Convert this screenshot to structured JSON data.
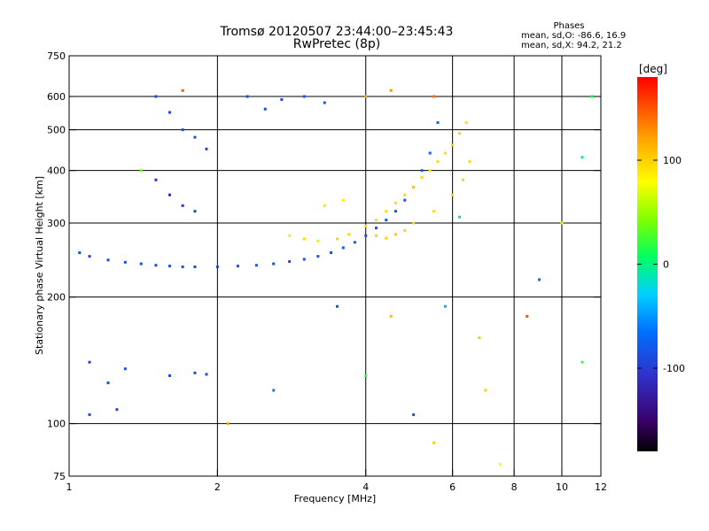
{
  "chart_data": {
    "type": "scatter",
    "title": "Tromsø 20120507 23:44:00–23:45:43",
    "subtitle": "RwPretec (8p)",
    "xlabel": "Frequency [MHz]",
    "ylabel": "Stationary phase Virtual Height [km]",
    "x_scale": "log",
    "y_scale": "log",
    "xlim": [
      1,
      12
    ],
    "ylim": [
      75,
      750
    ],
    "x_ticks": [
      1,
      2,
      4,
      6,
      8,
      10,
      12
    ],
    "y_ticks": [
      75,
      100,
      200,
      300,
      400,
      500,
      600,
      750
    ],
    "x_gridlines": [
      2,
      4,
      6,
      8,
      10
    ],
    "y_gridlines": [
      100,
      200,
      300,
      400,
      500,
      600
    ],
    "grid": true,
    "stats": {
      "heading": "Phases",
      "line_o": "mean, sd,O: -86.6, 16.9",
      "line_x": "mean, sd,X:  94.2, 21.2"
    },
    "colorbar": {
      "label": "[deg]",
      "range": [
        -180,
        180
      ],
      "ticks": [
        100,
        0,
        -100
      ],
      "colormap": "rainbow (black→purple→blue→cyan→green→yellow→orange→red)"
    },
    "o_trace_points": [
      [
        1.05,
        255,
        -90
      ],
      [
        1.1,
        250,
        -95
      ],
      [
        1.2,
        245,
        -92
      ],
      [
        1.3,
        242,
        -88
      ],
      [
        1.4,
        240,
        -90
      ],
      [
        1.5,
        238,
        -93
      ],
      [
        1.6,
        237,
        -85
      ],
      [
        1.7,
        236,
        -88
      ],
      [
        1.8,
        236,
        -90
      ],
      [
        2.0,
        236,
        -92
      ],
      [
        2.2,
        237,
        -87
      ],
      [
        2.4,
        238,
        -85
      ],
      [
        2.6,
        240,
        -90
      ],
      [
        2.8,
        243,
        -88
      ],
      [
        3.0,
        246,
        -86
      ],
      [
        3.2,
        250,
        -84
      ],
      [
        3.4,
        255,
        -82
      ],
      [
        3.6,
        262,
        -80
      ],
      [
        3.8,
        270,
        -82
      ],
      [
        4.0,
        280,
        -85
      ],
      [
        4.2,
        292,
        -83
      ],
      [
        4.4,
        305,
        -80
      ],
      [
        4.6,
        320,
        -82
      ],
      [
        4.8,
        340,
        -85
      ],
      [
        5.0,
        365,
        -80
      ],
      [
        5.2,
        400,
        -78
      ],
      [
        5.4,
        440,
        -75
      ],
      [
        5.6,
        520,
        -72
      ],
      [
        1.5,
        600,
        -88
      ],
      [
        1.6,
        550,
        -95
      ],
      [
        1.7,
        500,
        -90
      ],
      [
        1.8,
        480,
        -85
      ],
      [
        1.9,
        450,
        -92
      ],
      [
        1.5,
        380,
        -105
      ],
      [
        1.6,
        350,
        -110
      ],
      [
        1.7,
        330,
        -100
      ],
      [
        1.8,
        320,
        -95
      ],
      [
        2.3,
        600,
        -88
      ],
      [
        2.5,
        560,
        -90
      ],
      [
        2.7,
        590,
        -86
      ],
      [
        3.0,
        600,
        -84
      ],
      [
        3.3,
        580,
        -82
      ],
      [
        1.1,
        140,
        -95
      ],
      [
        1.2,
        125,
        -90
      ],
      [
        1.3,
        135,
        -88
      ],
      [
        1.1,
        105,
        -92
      ],
      [
        1.25,
        108,
        -96
      ],
      [
        1.6,
        130,
        -85
      ],
      [
        1.8,
        132,
        -90
      ],
      [
        1.9,
        131,
        -88
      ]
    ],
    "x_trace_points": [
      [
        2.8,
        280,
        90
      ],
      [
        3.0,
        275,
        95
      ],
      [
        3.2,
        272,
        92
      ],
      [
        3.5,
        275,
        98
      ],
      [
        3.7,
        282,
        100
      ],
      [
        4.0,
        295,
        95
      ],
      [
        4.2,
        305,
        92
      ],
      [
        4.4,
        320,
        96
      ],
      [
        4.6,
        335,
        94
      ],
      [
        4.8,
        350,
        98
      ],
      [
        5.0,
        365,
        100
      ],
      [
        5.2,
        385,
        95
      ],
      [
        5.4,
        400,
        92
      ],
      [
        5.6,
        420,
        96
      ],
      [
        5.8,
        440,
        94
      ],
      [
        6.0,
        460,
        98
      ],
      [
        6.2,
        490,
        100
      ],
      [
        6.4,
        520,
        96
      ],
      [
        4.2,
        280,
        98
      ],
      [
        4.4,
        276,
        100
      ],
      [
        4.6,
        282,
        102
      ],
      [
        4.8,
        288,
        98
      ],
      [
        5.0,
        300,
        96
      ],
      [
        5.5,
        320,
        95
      ],
      [
        6.0,
        350,
        94
      ],
      [
        6.3,
        380,
        96
      ],
      [
        6.5,
        420,
        98
      ],
      [
        3.3,
        330,
        90
      ],
      [
        3.6,
        340,
        88
      ],
      [
        4.0,
        600,
        120
      ],
      [
        4.5,
        620,
        130
      ],
      [
        5.5,
        600,
        140
      ]
    ],
    "scattered_points": [
      [
        1.4,
        400,
        40
      ],
      [
        1.7,
        620,
        150
      ],
      [
        2.1,
        100,
        120
      ],
      [
        2.6,
        120,
        -60
      ],
      [
        3.5,
        190,
        -80
      ],
      [
        4.0,
        130,
        20
      ],
      [
        4.5,
        180,
        110
      ],
      [
        5.0,
        105,
        -90
      ],
      [
        5.5,
        90,
        100
      ],
      [
        5.8,
        190,
        -40
      ],
      [
        6.2,
        310,
        -20
      ],
      [
        6.8,
        160,
        50
      ],
      [
        7.0,
        120,
        100
      ],
      [
        7.5,
        80,
        80
      ],
      [
        8.5,
        180,
        150
      ],
      [
        9.0,
        220,
        -70
      ],
      [
        10.0,
        300,
        70
      ],
      [
        11.0,
        140,
        20
      ],
      [
        11.5,
        600,
        10
      ],
      [
        11.0,
        430,
        -10
      ]
    ]
  }
}
